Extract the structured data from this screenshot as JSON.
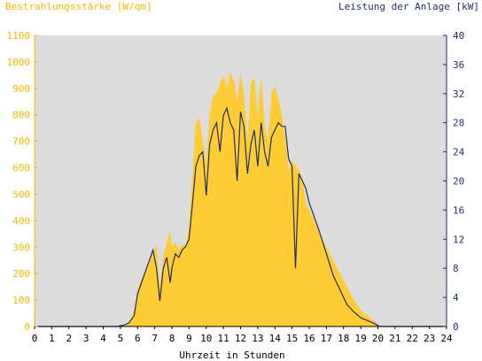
{
  "chart_data": {
    "type": "area",
    "title_left": "Bestrahlungsstärke [W/qm]",
    "title_right": "Leistung der Anlage [kW]",
    "xlabel": "Uhrzeit in Stunden",
    "xlim": [
      0,
      24
    ],
    "ylim_left": [
      0,
      1100
    ],
    "ylim_right": [
      0,
      40
    ],
    "x_ticks": [
      "0",
      "1",
      "2",
      "3",
      "4",
      "5",
      "6",
      "7",
      "8",
      "9",
      "10",
      "11",
      "12",
      "13",
      "14",
      "15",
      "16",
      "17",
      "18",
      "19",
      "20",
      "21",
      "22",
      "23",
      "24"
    ],
    "y_left_ticks": [
      "0",
      "100",
      "200",
      "300",
      "400",
      "500",
      "600",
      "700",
      "800",
      "900",
      "1000",
      "1100"
    ],
    "y_right_ticks": [
      "0",
      "4",
      "8",
      "12",
      "16",
      "20",
      "24",
      "28",
      "32",
      "36",
      "40"
    ],
    "grid": false,
    "colors": {
      "plot_bg": "#dcdcdc",
      "irradiance_fill": "#ffcc33",
      "power_line": "#1f2f6b",
      "left_axis_text": "#f5b800",
      "right_axis_text": "#1f2f6b"
    },
    "series": [
      {
        "axis": "left",
        "style": "area",
        "x": [
          0,
          4.8,
          5.2,
          5.5,
          5.8,
          6.0,
          6.3,
          6.6,
          6.9,
          7.1,
          7.3,
          7.5,
          7.7,
          7.9,
          8.0,
          8.2,
          8.4,
          8.6,
          8.8,
          9.0,
          9.2,
          9.4,
          9.6,
          9.8,
          10.0,
          10.2,
          10.4,
          10.6,
          10.8,
          11.0,
          11.2,
          11.4,
          11.6,
          11.8,
          12.0,
          12.2,
          12.4,
          12.6,
          12.8,
          13.0,
          13.2,
          13.4,
          13.6,
          13.8,
          14.0,
          14.2,
          14.4,
          14.6,
          14.8,
          15.0,
          15.2,
          15.4,
          15.6,
          15.8,
          16.0,
          16.3,
          16.6,
          17.0,
          17.4,
          17.8,
          18.2,
          18.6,
          19.0,
          19.4,
          19.8,
          20.1,
          20.3,
          24
        ],
        "y": [
          0,
          0,
          5,
          15,
          60,
          140,
          190,
          240,
          280,
          310,
          150,
          260,
          320,
          360,
          300,
          320,
          290,
          310,
          300,
          380,
          580,
          770,
          790,
          700,
          620,
          800,
          870,
          880,
          920,
          950,
          900,
          960,
          930,
          850,
          960,
          870,
          700,
          920,
          940,
          790,
          950,
          760,
          700,
          880,
          910,
          860,
          800,
          720,
          590,
          630,
          610,
          590,
          560,
          470,
          440,
          400,
          350,
          300,
          250,
          200,
          150,
          100,
          60,
          40,
          20,
          0,
          0,
          0
        ]
      },
      {
        "axis": "right",
        "style": "line",
        "x": [
          0,
          4.8,
          5.2,
          5.5,
          5.8,
          6.0,
          6.3,
          6.6,
          6.9,
          7.1,
          7.3,
          7.5,
          7.7,
          7.9,
          8.0,
          8.2,
          8.4,
          8.6,
          8.8,
          9.0,
          9.2,
          9.4,
          9.6,
          9.8,
          10.0,
          10.2,
          10.4,
          10.6,
          10.8,
          11.0,
          11.2,
          11.4,
          11.6,
          11.8,
          12.0,
          12.2,
          12.4,
          12.6,
          12.8,
          13.0,
          13.2,
          13.4,
          13.6,
          13.8,
          14.0,
          14.2,
          14.4,
          14.6,
          14.8,
          15.0,
          15.2,
          15.4,
          15.6,
          15.8,
          16.0,
          16.3,
          16.6,
          17.0,
          17.4,
          17.8,
          18.2,
          18.6,
          19.0,
          19.4,
          19.8,
          20.1,
          20.3,
          24
        ],
        "y": [
          0,
          0,
          0.2,
          0.5,
          1.5,
          4.5,
          6.5,
          8.5,
          10.5,
          8,
          3.5,
          8,
          9.5,
          6,
          8,
          10,
          9.5,
          10.5,
          11,
          12,
          17,
          22,
          23.5,
          24,
          18,
          25,
          27,
          28,
          24,
          29,
          30,
          28,
          27,
          20,
          29.5,
          27.5,
          21,
          25,
          27,
          22,
          28,
          24,
          22,
          26,
          27,
          28,
          27.5,
          27.5,
          23,
          22,
          8,
          21,
          20,
          19,
          17,
          15,
          13,
          10,
          7,
          5,
          3,
          2,
          1.2,
          0.8,
          0.4,
          0,
          0,
          0
        ]
      }
    ]
  }
}
